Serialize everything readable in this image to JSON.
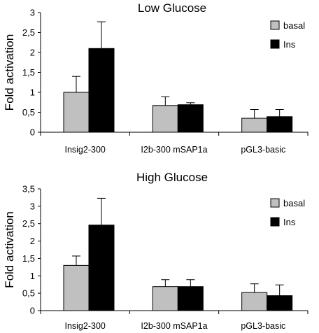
{
  "chart_data": [
    {
      "type": "bar",
      "title": "Low Glucose",
      "ylabel": "Fold activation",
      "xlabel": "",
      "categories": [
        "Insig2-300",
        "I2b-300 mSAP1a",
        "pGL3-basic"
      ],
      "ylim": [
        0,
        3
      ],
      "yticks": [
        "0",
        "0,5",
        "1",
        "1,5",
        "2",
        "2,5",
        "3"
      ],
      "legend_position": "top-right",
      "series": [
        {
          "name": "basal",
          "color": "#c0c0c0",
          "values": [
            1.0,
            0.67,
            0.35
          ],
          "errors": [
            0.4,
            0.22,
            0.22
          ]
        },
        {
          "name": "Ins",
          "color": "#000000",
          "values": [
            2.1,
            0.69,
            0.39
          ],
          "errors": [
            0.67,
            0.05,
            0.18
          ]
        }
      ]
    },
    {
      "type": "bar",
      "title": "High Glucose",
      "ylabel": "Fold activation",
      "xlabel": "",
      "categories": [
        "Insig2-300",
        "I2b-300 mSAP1a",
        "pGL3-basic"
      ],
      "ylim": [
        0,
        3.5
      ],
      "yticks": [
        "0",
        "0,5",
        "1",
        "1,5",
        "2",
        "2,5",
        "3",
        "3,5"
      ],
      "legend_position": "top-right",
      "series": [
        {
          "name": "basal",
          "color": "#c0c0c0",
          "values": [
            1.3,
            0.69,
            0.52
          ],
          "errors": [
            0.27,
            0.2,
            0.25
          ]
        },
        {
          "name": "Ins",
          "color": "#000000",
          "values": [
            2.46,
            0.69,
            0.43
          ],
          "errors": [
            0.77,
            0.2,
            0.31
          ]
        }
      ]
    }
  ]
}
